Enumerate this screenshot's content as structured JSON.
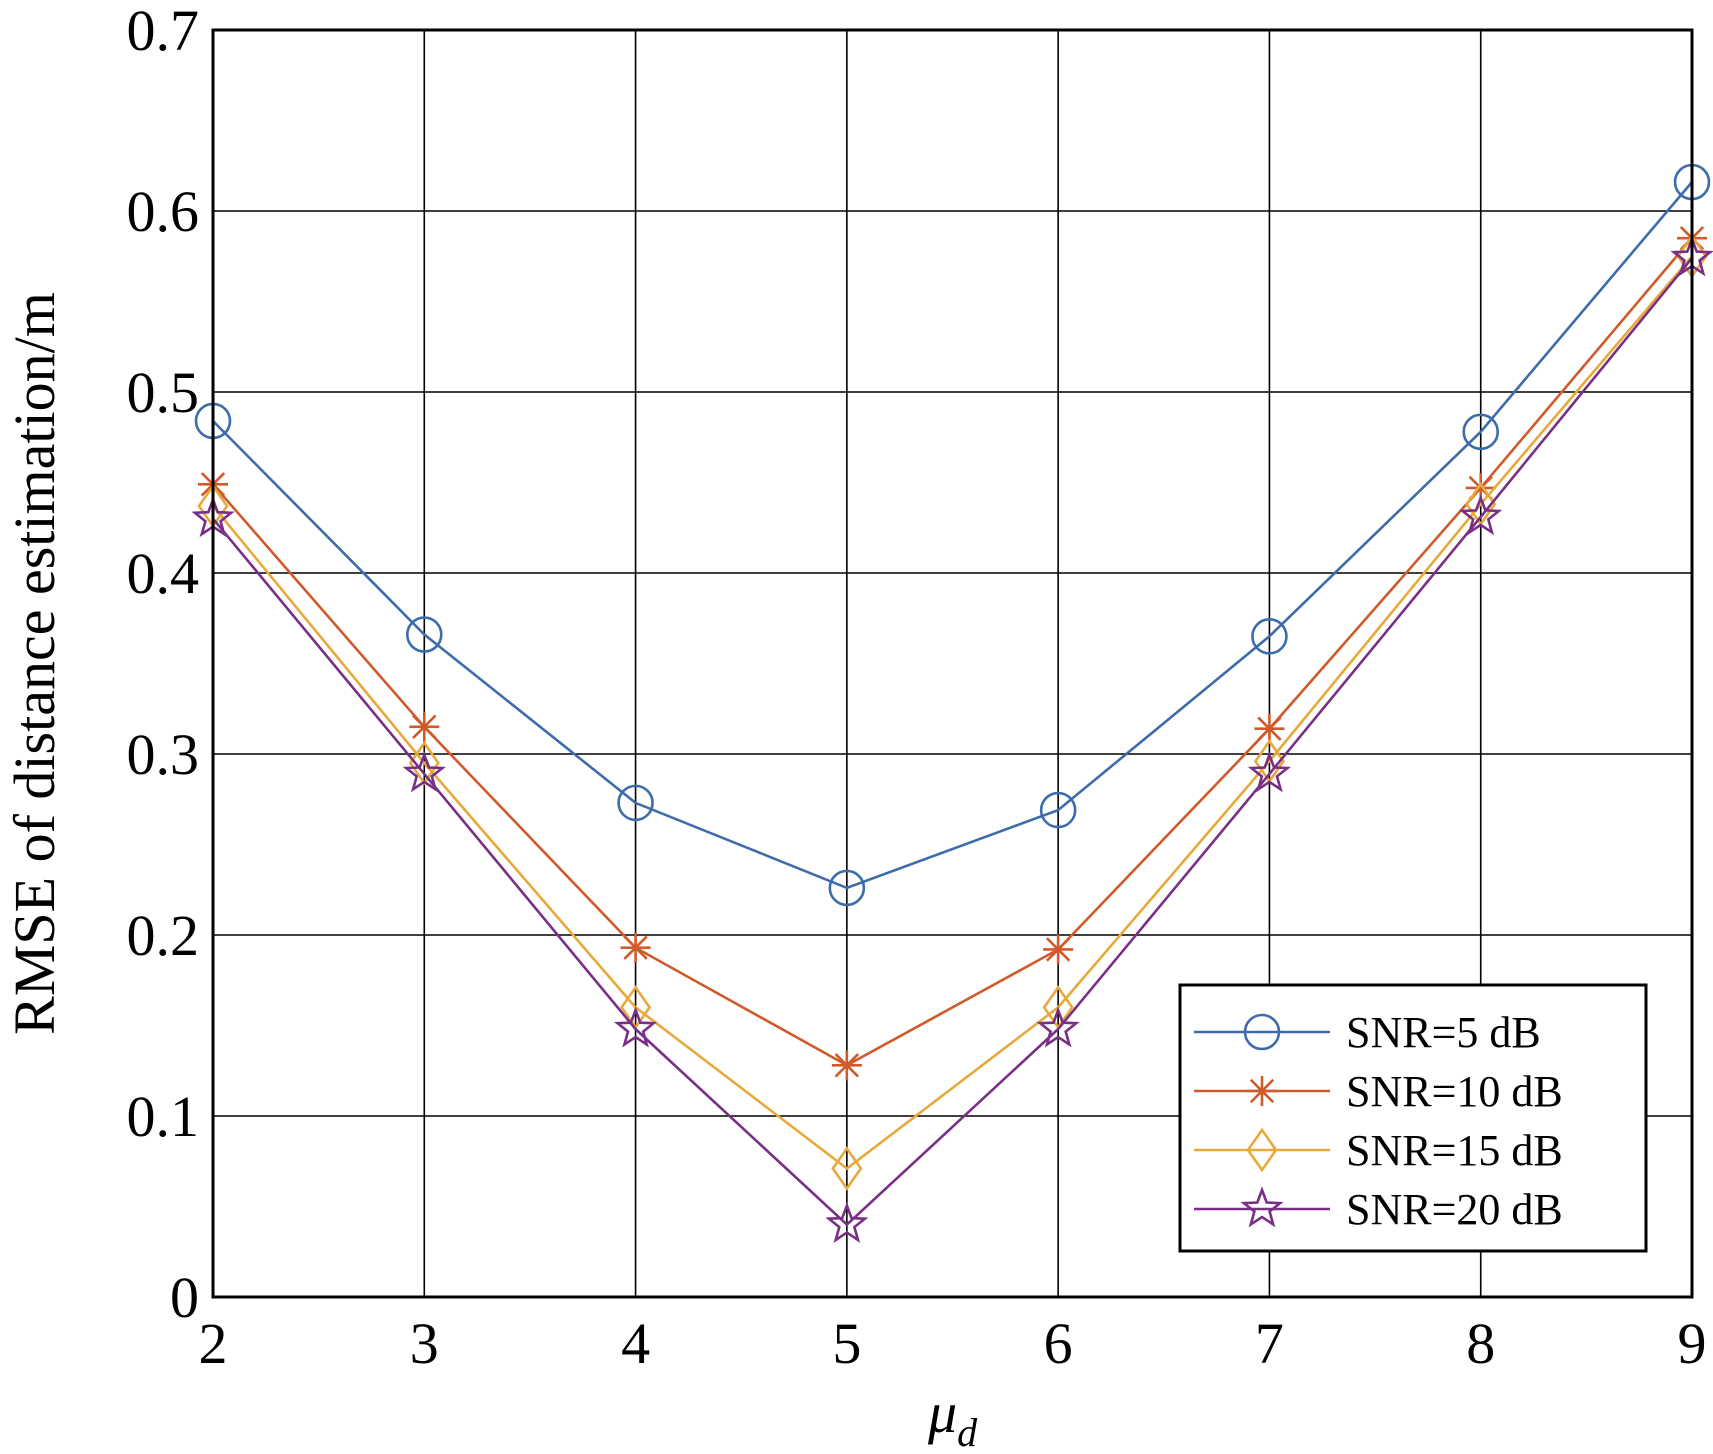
{
  "chart_data": {
    "type": "line",
    "title": "",
    "xlabel": "μ",
    "xlabel_sub": "d",
    "ylabel": "RMSE of distance estimation/m",
    "x": [
      2,
      3,
      4,
      5,
      6,
      7,
      8,
      9
    ],
    "xlim": [
      2,
      9
    ],
    "ylim": [
      0,
      0.7
    ],
    "xticks": [
      "2",
      "3",
      "4",
      "5",
      "6",
      "7",
      "8",
      "9"
    ],
    "yticks": [
      "0",
      "0.1",
      "0.2",
      "0.3",
      "0.4",
      "0.5",
      "0.6",
      "0.7"
    ],
    "grid": true,
    "legend_position": "bottom-right",
    "series": [
      {
        "name": "SNR=5 dB",
        "color": "#3d6cab",
        "marker": "circle",
        "values": [
          0.484,
          0.366,
          0.273,
          0.226,
          0.269,
          0.365,
          0.478,
          0.616
        ]
      },
      {
        "name": "SNR=10 dB",
        "color": "#d05a2a",
        "marker": "asterisk",
        "values": [
          0.449,
          0.315,
          0.193,
          0.128,
          0.192,
          0.314,
          0.447,
          0.585
        ]
      },
      {
        "name": "SNR=15 dB",
        "color": "#e8a93a",
        "marker": "diamond",
        "values": [
          0.437,
          0.295,
          0.16,
          0.071,
          0.16,
          0.296,
          0.438,
          0.575
        ]
      },
      {
        "name": "SNR=20 dB",
        "color": "#7a2f86",
        "marker": "pentagram",
        "values": [
          0.43,
          0.289,
          0.148,
          0.04,
          0.148,
          0.289,
          0.431,
          0.574
        ]
      }
    ]
  }
}
